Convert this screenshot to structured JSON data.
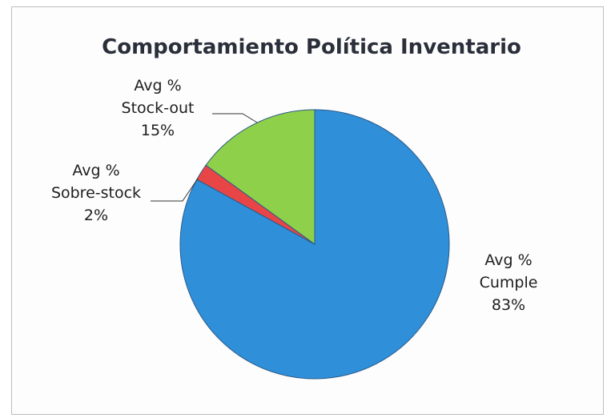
{
  "chart_data": {
    "type": "pie",
    "title": "Comportamiento Política Inventario",
    "slices": [
      {
        "category": "Avg % Cumple",
        "label_lines": [
          "Avg %",
          "Cumple",
          "83%"
        ],
        "value": 83,
        "color": "#2f8fd8"
      },
      {
        "category": "Avg % Sobre-stock",
        "label_lines": [
          "Avg %",
          "Sobre-stock",
          "2%"
        ],
        "value": 2,
        "color": "#e84646"
      },
      {
        "category": "Avg % Stock-out",
        "label_lines": [
          "Avg %",
          "Stock-out",
          "15%"
        ],
        "value": 15,
        "color": "#8ed04a"
      }
    ],
    "start_angle_deg": 0,
    "direction": "counterclockwise",
    "legend": "none"
  }
}
